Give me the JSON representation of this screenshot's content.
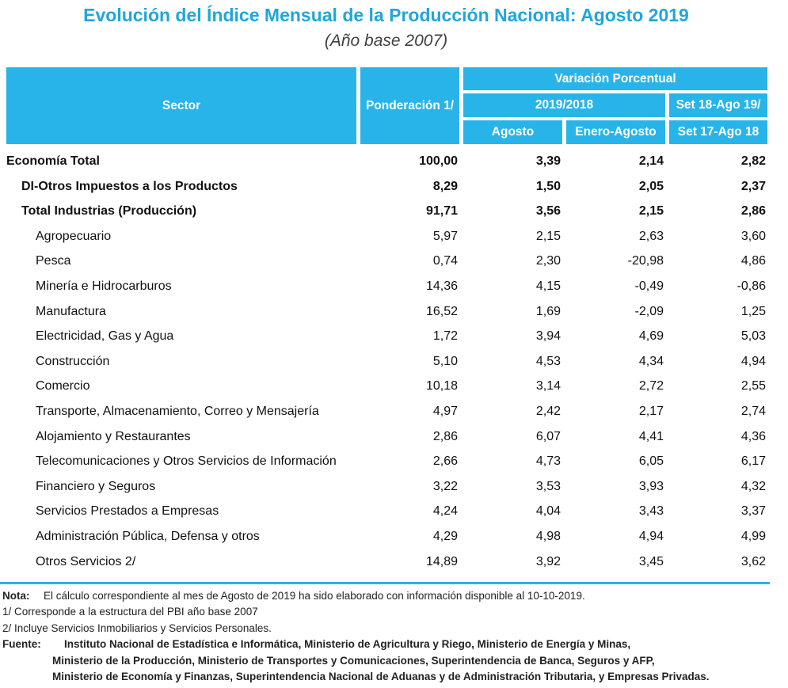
{
  "header": {
    "title": "Evolución del Índice Mensual de la Producción Nacional: Agosto 2019",
    "subtitle": "(Año base 2007)"
  },
  "table": {
    "columns": {
      "sector": "Sector",
      "weight": "Ponderación 1/",
      "variation": "Variación Porcentual",
      "period1": "2019/2018",
      "month": "Agosto",
      "ytd": "Enero-Agosto",
      "period2a": "Set 18-Ago 19/",
      "period2b": "Set 17-Ago 18"
    },
    "rows": [
      [
        "Economía Total",
        "100,00",
        "3,39",
        "2,14",
        "2,82"
      ],
      [
        "DI-Otros Impuestos a los Productos",
        "8,29",
        "1,50",
        "2,05",
        "2,37"
      ],
      [
        "Total  Industrias (Producción)",
        "91,71",
        "3,56",
        "2,15",
        "2,86"
      ],
      [
        "Agropecuario",
        "5,97",
        "2,15",
        "2,63",
        "3,60"
      ],
      [
        "Pesca",
        "0,74",
        "2,30",
        "-20,98",
        "4,86"
      ],
      [
        "Minería e Hidrocarburos",
        "14,36",
        "4,15",
        "-0,49",
        "-0,86"
      ],
      [
        "Manufactura",
        "16,52",
        "1,69",
        "-2,09",
        "1,25"
      ],
      [
        "Electricidad, Gas y Agua",
        "1,72",
        "3,94",
        "4,69",
        "5,03"
      ],
      [
        "Construcción",
        "5,10",
        "4,53",
        "4,34",
        "4,94"
      ],
      [
        "Comercio",
        "10,18",
        "3,14",
        "2,72",
        "2,55"
      ],
      [
        "Transporte, Almacenamiento, Correo y Mensajería",
        "4,97",
        "2,42",
        "2,17",
        "2,74"
      ],
      [
        "Alojamiento y Restaurantes",
        "2,86",
        "6,07",
        "4,41",
        "4,36"
      ],
      [
        "Telecomunicaciones y Otros Servicios de Información",
        "2,66",
        "4,73",
        "6,05",
        "6,17"
      ],
      [
        "Financiero y Seguros",
        "3,22",
        "3,53",
        "3,93",
        "4,32"
      ],
      [
        "Servicios Prestados a Empresas",
        "4,24",
        "4,04",
        "3,43",
        "3,37"
      ],
      [
        "Administración Pública, Defensa y otros",
        "4,29",
        "4,98",
        "4,94",
        "4,99"
      ],
      [
        "Otros Servicios 2/",
        "14,89",
        "3,92",
        "3,45",
        "3,62"
      ]
    ]
  },
  "notes": {
    "note_label": "Nota:",
    "note_text": "El cálculo correspondiente al mes de Agosto de 2019 ha sido elaborado con información disponible al 10-10-2019.",
    "footnote1": "1/ Corresponde a la estructura del PBI año base 2007",
    "footnote2": "2/ Incluye Servicios Inmobiliarios y Servicios Personales.",
    "source_label": "Fuente:",
    "source_lines": [
      "Instituto Nacional de Estadística e Informática, Ministerio de Agricultura y Riego, Ministerio de Energía y Minas,",
      "Ministerio de la Producción, Ministerio de Transportes y Comunicaciones, Superintendencia de Banca, Seguros y AFP,",
      "Ministerio de Economía y Finanzas, Superintendencia Nacional de Aduanas y de Administración Tributaria, y Empresas Privadas."
    ]
  }
}
